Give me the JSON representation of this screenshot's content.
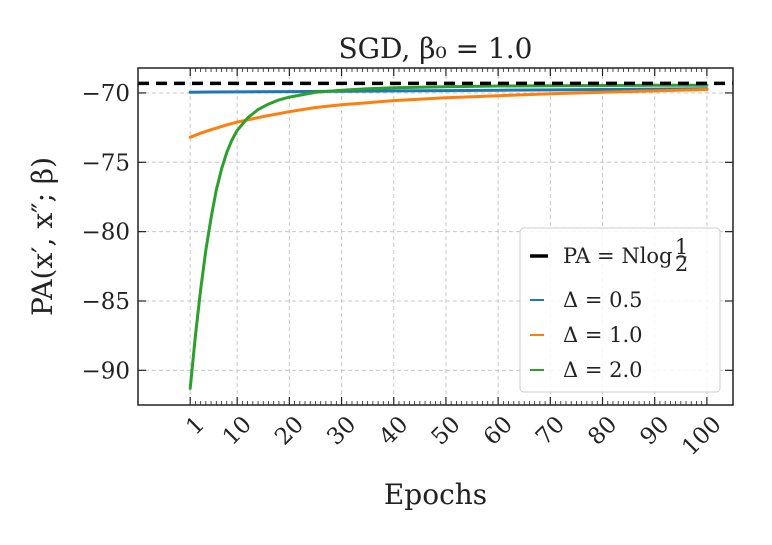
{
  "chart_data": {
    "type": "line",
    "title": "SGD, β₀ = 1.0",
    "xlabel": "Epochs",
    "ylabel": "PA(x′, x″; β)",
    "xlim": [
      -9,
      105
    ],
    "ylim": [
      -92.5,
      -68.2
    ],
    "xticks": [
      1,
      10,
      20,
      30,
      40,
      50,
      60,
      70,
      80,
      90,
      100
    ],
    "xtick_labels": [
      "1",
      "10",
      "20",
      "30",
      "40",
      "50",
      "60",
      "70",
      "80",
      "90",
      "100"
    ],
    "yticks": [
      -70,
      -75,
      -80,
      -85,
      -90
    ],
    "ytick_labels": [
      "−70",
      "−75",
      "−80",
      "−85",
      "−90"
    ],
    "grid": true,
    "legend_position": "lower-right",
    "reference_line": {
      "label": "PA = Nlog",
      "fraction_num": "1",
      "fraction_den": "2",
      "y": -69.31,
      "color": "#000000",
      "style": "dashed"
    },
    "series": [
      {
        "name": "Δ = 0.5",
        "color": "#1f77b4",
        "x": [
          1,
          5,
          10,
          20,
          30,
          40,
          50,
          60,
          70,
          80,
          90,
          100
        ],
        "y": [
          -69.95,
          -69.93,
          -69.92,
          -69.9,
          -69.88,
          -69.85,
          -69.83,
          -69.8,
          -69.78,
          -69.75,
          -69.72,
          -69.7
        ]
      },
      {
        "name": "Δ = 1.0",
        "color": "#ff7f0e",
        "x": [
          1,
          3,
          5,
          8,
          10,
          15,
          20,
          25,
          30,
          35,
          40,
          50,
          60,
          70,
          80,
          90,
          100
        ],
        "y": [
          -73.2,
          -72.9,
          -72.65,
          -72.3,
          -72.1,
          -71.7,
          -71.35,
          -71.05,
          -70.85,
          -70.7,
          -70.55,
          -70.35,
          -70.2,
          -70.05,
          -69.95,
          -69.85,
          -69.75
        ]
      },
      {
        "name": "Δ = 2.0",
        "color": "#2ca02c",
        "x": [
          1,
          2,
          3,
          4,
          5,
          6,
          7,
          8,
          9,
          10,
          12,
          14,
          16,
          18,
          20,
          25,
          30,
          35,
          40,
          50,
          60,
          70,
          80,
          90,
          100
        ],
        "y": [
          -91.3,
          -87.5,
          -84.2,
          -81.3,
          -79.0,
          -77.0,
          -75.5,
          -74.3,
          -73.4,
          -72.7,
          -71.8,
          -71.2,
          -70.8,
          -70.5,
          -70.3,
          -69.95,
          -69.8,
          -69.7,
          -69.62,
          -69.55,
          -69.5,
          -69.48,
          -69.46,
          -69.45,
          -69.44
        ]
      }
    ]
  }
}
